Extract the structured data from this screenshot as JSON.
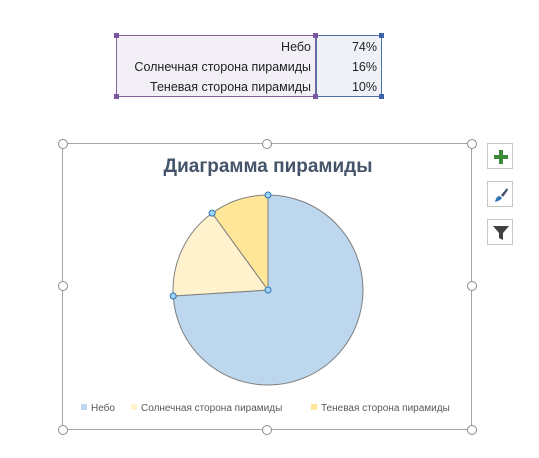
{
  "source_table": {
    "rows": [
      {
        "label": "Небо",
        "value": "74%"
      },
      {
        "label": "Солнечная сторона пирамиды",
        "value": "16%"
      },
      {
        "label": "Теневая сторона пирамиды",
        "value": "10%"
      }
    ]
  },
  "chart_data": {
    "type": "pie",
    "title": "Диаграмма пирамиды",
    "categories": [
      "Небо",
      "Солнечная сторона пирамиды",
      "Теневая сторона пирамиды"
    ],
    "values": [
      74,
      16,
      10
    ],
    "colors": [
      "#bdd7ee",
      "#fff2cc",
      "#ffe699"
    ],
    "start_angle_deg": 0,
    "selected_slice": "Солнечная сторона пирамиды",
    "legend_position": "bottom"
  },
  "tools": [
    {
      "name": "add-chart-element",
      "icon": "plus-icon"
    },
    {
      "name": "chart-styles",
      "icon": "brush-icon"
    },
    {
      "name": "chart-filters",
      "icon": "filter-icon"
    }
  ]
}
